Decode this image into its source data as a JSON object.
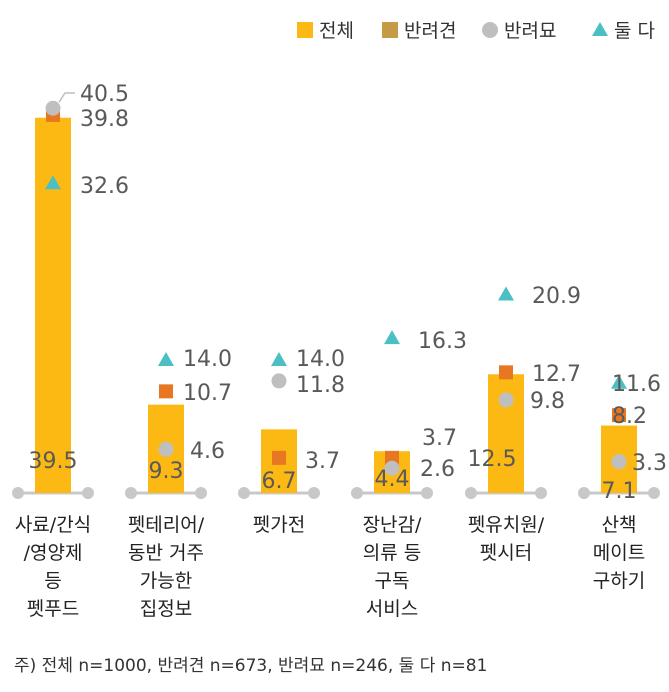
{
  "chart_data": {
    "type": "bar",
    "categories": [
      [
        "사료/간식",
        "/영양제",
        "등",
        "펫푸드"
      ],
      [
        "펫테리어/",
        "동반 거주",
        "가능한",
        "집정보"
      ],
      [
        "펫가전"
      ],
      [
        "장난감/",
        "의류 등",
        "구독",
        "서비스"
      ],
      [
        "펫유치원/",
        "펫시터"
      ],
      [
        "산책",
        "메이트",
        "구하기"
      ]
    ],
    "series": [
      {
        "name": "전체",
        "mark": "bar",
        "color": "#FDB913",
        "values": [
          39.5,
          9.3,
          6.7,
          4.4,
          12.5,
          7.1
        ]
      },
      {
        "name": "반려견",
        "mark": "square",
        "color": "#E87722",
        "legend_color": "#C49A45",
        "values": [
          39.8,
          10.7,
          3.7,
          3.7,
          12.7,
          8.2
        ]
      },
      {
        "name": "반려묘",
        "mark": "circle",
        "color": "#BFBFBF",
        "values": [
          40.5,
          4.6,
          11.8,
          2.6,
          9.8,
          3.3
        ]
      },
      {
        "name": "둘 다",
        "mark": "triangle",
        "color": "#4BBFC3",
        "values": [
          32.6,
          14.0,
          14.0,
          16.3,
          20.9,
          11.6
        ]
      }
    ],
    "value_labels": {
      "전체": [
        "39.5",
        "9.3",
        "6.7",
        "4.4",
        "12.5",
        "7.1"
      ],
      "반려견": [
        "39.8",
        "10.7",
        "3.7",
        "3.7",
        "12.7",
        "8.2"
      ],
      "반려묘": [
        "40.5",
        "4.6",
        "11.8",
        "2.6",
        "9.8",
        "3.3"
      ],
      "둘 다": [
        "32.6",
        "14.0",
        "14.0",
        "16.3",
        "20.9",
        "11.6"
      ]
    },
    "ylim": [
      0,
      42
    ],
    "grid": false,
    "legend": "top-right",
    "xlabel": "",
    "ylabel": "",
    "title": ""
  },
  "footnote": "주) 전체 n=1000, 반려견 n=673, 반려묘 n=246, 둘 다 n=81"
}
